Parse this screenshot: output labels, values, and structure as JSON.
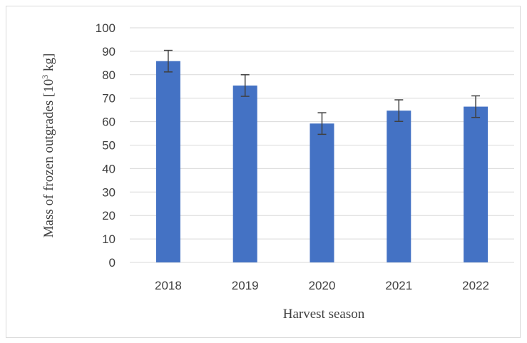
{
  "chart_data": {
    "type": "bar",
    "categories": [
      "2018",
      "2019",
      "2020",
      "2021",
      "2022"
    ],
    "values": [
      85.8,
      75.4,
      59.2,
      64.7,
      66.4
    ],
    "error": [
      4.6,
      4.6,
      4.6,
      4.6,
      4.6
    ],
    "xlabel": "Harvest season",
    "ylabel_main": "Mass of frozen outgrades [10",
    "ylabel_sup": "3",
    "ylabel_tail": " kg]",
    "ylim": [
      0,
      100
    ],
    "yticks": [
      0,
      10,
      20,
      30,
      40,
      50,
      60,
      70,
      80,
      90,
      100
    ],
    "grid": true,
    "legend": "none",
    "bar_color": "#4472c4",
    "error_color": "#404040",
    "grid_color": "#d9d9d9"
  }
}
